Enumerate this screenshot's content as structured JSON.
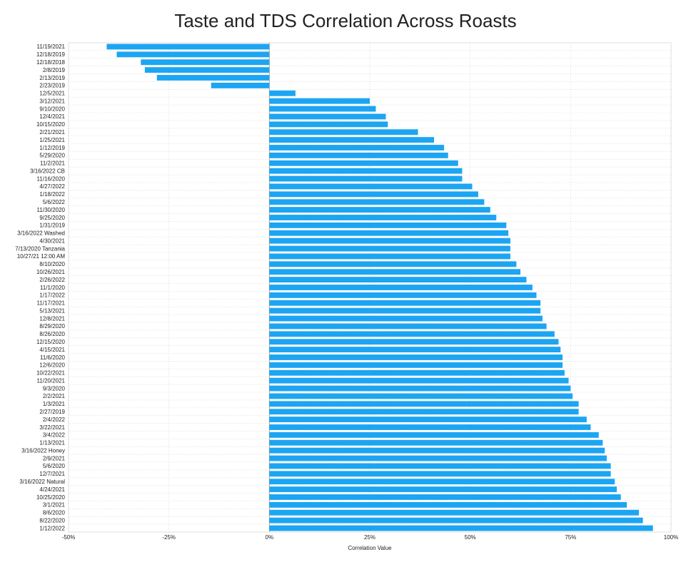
{
  "chart_data": {
    "type": "bar",
    "orientation": "horizontal",
    "title": "Taste and TDS Correlation Across Roasts",
    "xlabel": "Correlation Value",
    "ylabel": "",
    "xlim": [
      -50,
      100
    ],
    "x_ticks": [
      "-50%",
      "-25%",
      "0%",
      "25%",
      "50%",
      "75%",
      "100%"
    ],
    "grid": true,
    "bar_color": "#1ca5f2",
    "categories": [
      "11/19/2021",
      "12/18/2019",
      "12/18/2018",
      "2/8/2019",
      "2/13/2019",
      "2/23/2019",
      "12/5/2021",
      "3/12/2021",
      "9/10/2020",
      "12/4/2021",
      "10/15/2020",
      "2/21/2021",
      "1/25/2021",
      "1/12/2019",
      "5/29/2020",
      "11/2/2021",
      "3/16/2022 CB",
      "11/16/2020",
      "4/27/2022",
      "1/18/2022",
      "5/6/2022",
      "11/30/2020",
      "9/25/2020",
      "1/31/2019",
      "3/16/2022 Washed",
      "4/30/2021",
      "7/13/2020 Tanzania",
      "10/27/21 12:00 AM",
      "8/10/2020",
      "10/26/2021",
      "2/26/2022",
      "11/1/2020",
      "1/17/2022",
      "11/17/2021",
      "5/13/2021",
      "12/8/2021",
      "8/29/2020",
      "8/26/2020",
      "12/15/2020",
      "4/15/2021",
      "11/6/2020",
      "12/6/2020",
      "10/22/2021",
      "11/20/2021",
      "9/3/2020",
      "2/2/2021",
      "1/3/2021",
      "2/27/2019",
      "2/4/2022",
      "3/22/2021",
      "3/4/2022",
      "1/13/2021",
      "3/16/2022 Honey",
      "2/9/2021",
      "5/6/2020",
      "12/7/2021",
      "3/16/2022 Natural",
      "4/24/2021",
      "10/25/2020",
      "3/1/2021",
      "8/6/2020",
      "8/22/2020",
      "1/12/2022"
    ],
    "values": [
      -40.5,
      -38,
      -32,
      -31,
      -28,
      -14.5,
      6.5,
      25,
      26.5,
      29,
      29.5,
      37,
      41,
      43.5,
      44.5,
      47,
      48,
      48,
      50.5,
      52,
      53.5,
      55,
      56.5,
      59,
      59.5,
      60,
      60,
      60,
      61.5,
      62.5,
      64,
      65.5,
      66.5,
      67.5,
      67.5,
      68,
      69,
      71,
      72,
      72.5,
      73,
      73,
      73.5,
      74.5,
      75,
      75.5,
      77,
      77,
      79,
      80,
      82,
      83,
      83.5,
      84,
      85,
      85,
      86,
      86.5,
      87.5,
      89,
      92,
      93,
      95.5
    ]
  }
}
